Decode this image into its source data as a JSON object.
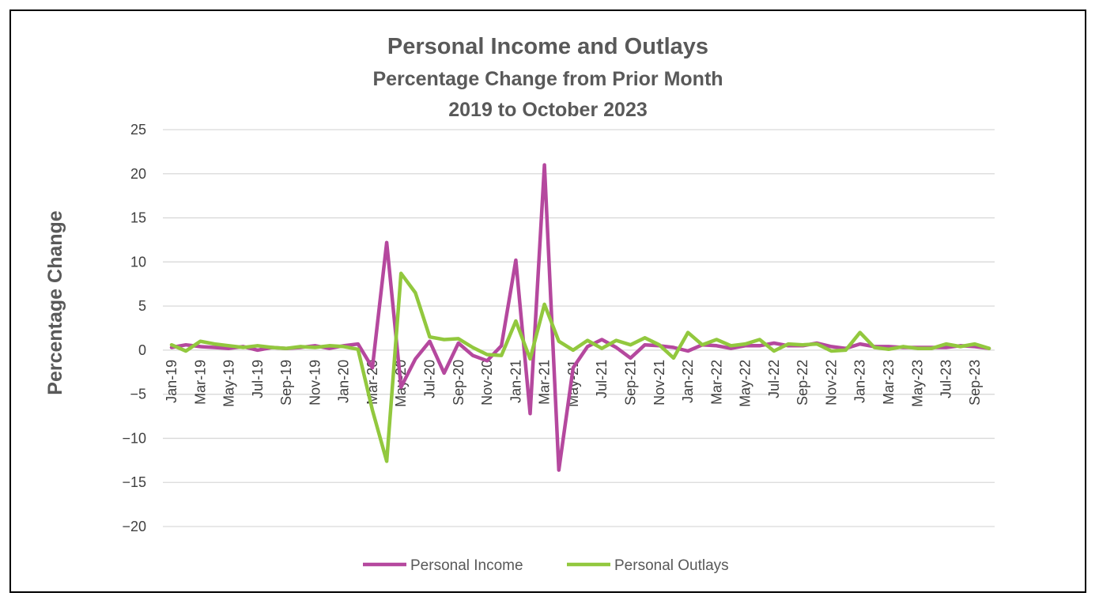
{
  "chart_data": {
    "type": "line",
    "title": "Personal Income and Outlays",
    "subtitle_lines": [
      "Percentage Change from Prior Month",
      "2019 to October 2023"
    ],
    "ylabel": "Percentage Change",
    "xlabel": "",
    "ylim": [
      -20,
      25
    ],
    "yticks": [
      25,
      20,
      15,
      10,
      5,
      0,
      -5,
      -10,
      -15,
      -20
    ],
    "grid": true,
    "legend_position": "bottom",
    "x": [
      "Jan-19",
      "Feb-19",
      "Mar-19",
      "Apr-19",
      "May-19",
      "Jun-19",
      "Jul-19",
      "Aug-19",
      "Sep-19",
      "Oct-19",
      "Nov-19",
      "Dec-19",
      "Jan-20",
      "Feb-20",
      "Mar-20",
      "Apr-20",
      "May-20",
      "Jun-20",
      "Jul-20",
      "Aug-20",
      "Sep-20",
      "Oct-20",
      "Nov-20",
      "Dec-20",
      "Jan-21",
      "Feb-21",
      "Mar-21",
      "Apr-21",
      "May-21",
      "Jun-21",
      "Jul-21",
      "Aug-21",
      "Sep-21",
      "Oct-21",
      "Nov-21",
      "Dec-21",
      "Jan-22",
      "Feb-22",
      "Mar-22",
      "Apr-22",
      "May-22",
      "Jun-22",
      "Jul-22",
      "Aug-22",
      "Sep-22",
      "Oct-22",
      "Nov-22",
      "Dec-22",
      "Jan-23",
      "Feb-23",
      "Mar-23",
      "Apr-23",
      "May-23",
      "Jun-23",
      "Jul-23",
      "Aug-23",
      "Sep-23",
      "Oct-23"
    ],
    "x_tick_labels": [
      "Jan-19",
      "Mar-19",
      "May-19",
      "Jul-19",
      "Sep-19",
      "Nov-19",
      "Jan-20",
      "Mar-20",
      "May-20",
      "Jul-20",
      "Sep-20",
      "Nov-20",
      "Jan-21",
      "Mar-21",
      "May-21",
      "Jul-21",
      "Sep-21",
      "Nov-21",
      "Jan-22",
      "Mar-22",
      "May-22",
      "Jul-22",
      "Sep-22",
      "Nov-22",
      "Jan-23",
      "Mar-23",
      "May-23",
      "Jul-23",
      "Sep-23"
    ],
    "series": [
      {
        "name": "Personal Income",
        "color": "#B5489E",
        "values": [
          0.3,
          0.6,
          0.4,
          0.3,
          0.2,
          0.4,
          0.0,
          0.3,
          0.2,
          0.3,
          0.5,
          0.2,
          0.5,
          0.7,
          -2.0,
          12.2,
          -4.2,
          -1.0,
          1.0,
          -2.6,
          0.8,
          -0.6,
          -1.2,
          0.5,
          10.2,
          -7.2,
          21.0,
          -13.6,
          -2.0,
          0.4,
          1.2,
          0.3,
          -0.9,
          0.6,
          0.5,
          0.3,
          -0.1,
          0.6,
          0.5,
          0.2,
          0.5,
          0.5,
          0.8,
          0.5,
          0.5,
          0.8,
          0.4,
          0.2,
          0.7,
          0.4,
          0.4,
          0.3,
          0.3,
          0.3,
          0.3,
          0.5,
          0.4,
          0.2
        ]
      },
      {
        "name": "Personal Outlays",
        "color": "#92C83E",
        "values": [
          0.6,
          -0.1,
          1.0,
          0.7,
          0.5,
          0.3,
          0.5,
          0.3,
          0.2,
          0.4,
          0.3,
          0.5,
          0.4,
          0.1,
          -6.8,
          -12.6,
          8.7,
          6.5,
          1.5,
          1.2,
          1.3,
          0.3,
          -0.5,
          -0.6,
          3.3,
          -1.0,
          5.2,
          1.0,
          0.0,
          1.1,
          0.2,
          1.1,
          0.6,
          1.4,
          0.6,
          -0.9,
          2.0,
          0.6,
          1.2,
          0.5,
          0.7,
          1.2,
          -0.1,
          0.7,
          0.6,
          0.7,
          -0.1,
          0.0,
          2.0,
          0.3,
          0.1,
          0.4,
          0.2,
          0.2,
          0.7,
          0.4,
          0.7,
          0.2
        ]
      }
    ]
  }
}
